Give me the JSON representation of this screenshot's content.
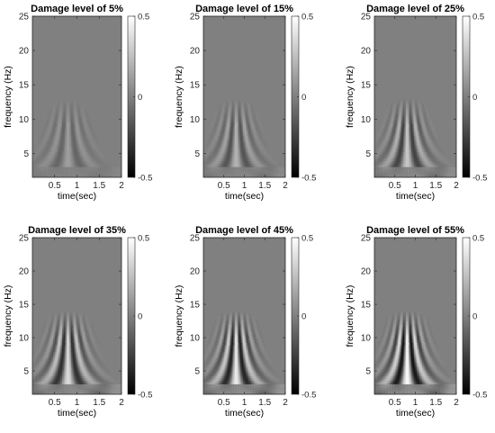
{
  "figure": {
    "background": "#ffffff"
  },
  "chart_data": [
    {
      "type": "heatmap",
      "title": "Damage level of 5%",
      "xlabel": "time(sec)",
      "ylabel": "frequency (Hz)",
      "xlim": [
        0,
        2
      ],
      "ylim": [
        1.5,
        25
      ],
      "xticks": [
        0.5,
        1,
        1.5,
        2
      ],
      "xtick_labels": [
        "0.5",
        "1",
        "1.5",
        "2"
      ],
      "yticks": [
        5,
        10,
        15,
        20,
        25
      ],
      "ytick_labels": [
        "5",
        "10",
        "15",
        "20",
        "25"
      ],
      "colorbar": {
        "range": [
          -0.5,
          0.5
        ],
        "ticks": [
          "0.5",
          "0",
          "-0.5"
        ],
        "colormap": "gray"
      },
      "pattern": {
        "center_time": 0.8,
        "max_frequency": 12,
        "peak_amplitude": 0.12
      }
    },
    {
      "type": "heatmap",
      "title": "Damage level of 15%",
      "xlabel": "time(sec)",
      "ylabel": "frequency (Hz)",
      "xlim": [
        0,
        2
      ],
      "ylim": [
        1.5,
        25
      ],
      "xticks": [
        0.5,
        1,
        1.5,
        2
      ],
      "xtick_labels": [
        "0.5",
        "1",
        "1.5",
        "2"
      ],
      "yticks": [
        5,
        10,
        15,
        20,
        25
      ],
      "ytick_labels": [
        "5",
        "10",
        "15",
        "20",
        "25"
      ],
      "colorbar": {
        "range": [
          -0.5,
          0.5
        ],
        "ticks": [
          "0.5",
          "0",
          "-0.5"
        ],
        "colormap": "gray"
      },
      "pattern": {
        "center_time": 0.8,
        "max_frequency": 12,
        "peak_amplitude": 0.2
      }
    },
    {
      "type": "heatmap",
      "title": "Damage level of 25%",
      "xlabel": "time(sec)",
      "ylabel": "frequency (Hz)",
      "xlim": [
        0,
        2
      ],
      "ylim": [
        1.5,
        25
      ],
      "xticks": [
        0.5,
        1,
        1.5,
        2
      ],
      "xtick_labels": [
        "0.5",
        "1",
        "1.5",
        "2"
      ],
      "yticks": [
        5,
        10,
        15,
        20,
        25
      ],
      "ytick_labels": [
        "5",
        "10",
        "15",
        "20",
        "25"
      ],
      "colorbar": {
        "range": [
          -0.5,
          0.5
        ],
        "ticks": [
          "0.5",
          "0",
          "-0.5"
        ],
        "colormap": "gray"
      },
      "pattern": {
        "center_time": 0.8,
        "max_frequency": 12,
        "peak_amplitude": 0.28
      }
    },
    {
      "type": "heatmap",
      "title": "Damage level of 35%",
      "xlabel": "time(sec)",
      "ylabel": "frequency (Hz)",
      "xlim": [
        0,
        2
      ],
      "ylim": [
        1.5,
        25
      ],
      "xticks": [
        0.5,
        1,
        1.5,
        2
      ],
      "xtick_labels": [
        "0.5",
        "1",
        "1.5",
        "2"
      ],
      "yticks": [
        5,
        10,
        15,
        20,
        25
      ],
      "ytick_labels": [
        "5",
        "10",
        "15",
        "20",
        "25"
      ],
      "colorbar": {
        "range": [
          -0.5,
          0.5
        ],
        "ticks": [
          "0.5",
          "0",
          "-0.5"
        ],
        "colormap": "gray"
      },
      "pattern": {
        "center_time": 0.8,
        "max_frequency": 13,
        "peak_amplitude": 0.36
      }
    },
    {
      "type": "heatmap",
      "title": "Damage level of 45%",
      "xlabel": "time(sec)",
      "ylabel": "frequency (Hz)",
      "xlim": [
        0,
        2
      ],
      "ylim": [
        1.5,
        25
      ],
      "xticks": [
        0.5,
        1,
        1.5,
        2
      ],
      "xtick_labels": [
        "0.5",
        "1",
        "1.5",
        "2"
      ],
      "yticks": [
        5,
        10,
        15,
        20,
        25
      ],
      "ytick_labels": [
        "5",
        "10",
        "15",
        "20",
        "25"
      ],
      "colorbar": {
        "range": [
          -0.5,
          0.5
        ],
        "ticks": [
          "0.5",
          "0",
          "-0.5"
        ],
        "colormap": "gray"
      },
      "pattern": {
        "center_time": 0.8,
        "max_frequency": 13,
        "peak_amplitude": 0.42
      }
    },
    {
      "type": "heatmap",
      "title": "Damage level of 55%",
      "xlabel": "time(sec)",
      "ylabel": "frequency (Hz)",
      "xlim": [
        0,
        2
      ],
      "ylim": [
        1.5,
        25
      ],
      "xticks": [
        0.5,
        1,
        1.5,
        2
      ],
      "xtick_labels": [
        "0.5",
        "1",
        "1.5",
        "2"
      ],
      "yticks": [
        5,
        10,
        15,
        20,
        25
      ],
      "ytick_labels": [
        "5",
        "10",
        "15",
        "20",
        "25"
      ],
      "colorbar": {
        "range": [
          -0.5,
          0.5
        ],
        "ticks": [
          "0.5",
          "0",
          "-0.5"
        ],
        "colormap": "gray"
      },
      "pattern": {
        "center_time": 0.8,
        "max_frequency": 13,
        "peak_amplitude": 0.48
      }
    }
  ]
}
